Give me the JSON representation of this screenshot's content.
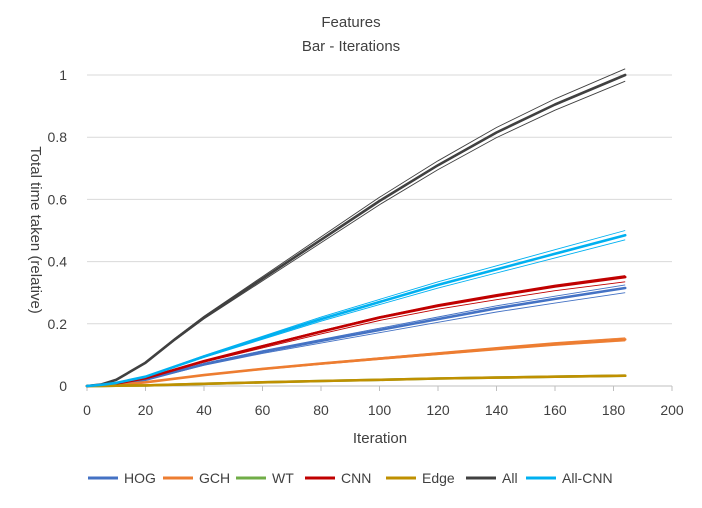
{
  "chart_data": {
    "type": "line",
    "title": "Features",
    "subtitle": "Bar - Iterations",
    "xlabel": "Iteration",
    "ylabel": "Total time taken (relative)",
    "xlim": [
      0,
      200
    ],
    "ylim": [
      0,
      1
    ],
    "x_ticks": [
      "0",
      "20",
      "40",
      "60",
      "80",
      "100",
      "120",
      "140",
      "160",
      "180",
      "200"
    ],
    "y_ticks": [
      "0",
      "0.2",
      "0.4",
      "0.6",
      "0.8",
      "1"
    ],
    "grid": "horizontal",
    "legend_position": "bottom",
    "series": [
      {
        "name": "HOG",
        "color": "#4472C4",
        "x": [
          0,
          5,
          10,
          20,
          40,
          60,
          80,
          100,
          120,
          140,
          160,
          184
        ],
        "values": [
          0,
          0.002,
          0.006,
          0.02,
          0.07,
          0.11,
          0.145,
          0.18,
          0.215,
          0.25,
          0.28,
          0.315
        ],
        "band": [
          0.3,
          0.325
        ]
      },
      {
        "name": "GCH",
        "color": "#ED7D31",
        "x": [
          0,
          5,
          10,
          20,
          40,
          60,
          80,
          100,
          120,
          140,
          160,
          184
        ],
        "values": [
          0,
          0.001,
          0.004,
          0.012,
          0.035,
          0.055,
          0.072,
          0.088,
          0.104,
          0.12,
          0.135,
          0.15
        ],
        "band": [
          0.145,
          0.155
        ]
      },
      {
        "name": "WT",
        "color": "#70AD47",
        "x": [
          0,
          5,
          10,
          20,
          40,
          60,
          80,
          100,
          120,
          140,
          160,
          184
        ],
        "values": [
          0,
          0,
          0.001,
          0.002,
          0.007,
          0.012,
          0.016,
          0.02,
          0.024,
          0.027,
          0.03,
          0.033
        ],
        "band": [
          0.031,
          0.035
        ]
      },
      {
        "name": "CNN",
        "color": "#C00000",
        "x": [
          0,
          5,
          10,
          20,
          40,
          60,
          80,
          100,
          120,
          140,
          160,
          184
        ],
        "values": [
          0,
          0.003,
          0.008,
          0.025,
          0.08,
          0.128,
          0.175,
          0.22,
          0.258,
          0.29,
          0.32,
          0.35
        ],
        "band": [
          0.335,
          0.355
        ]
      },
      {
        "name": "Edge",
        "color": "#BF9000",
        "x": [
          0,
          5,
          10,
          20,
          40,
          60,
          80,
          100,
          120,
          140,
          160,
          184
        ],
        "values": [
          0,
          0,
          0.001,
          0.002,
          0.007,
          0.012,
          0.016,
          0.02,
          0.024,
          0.027,
          0.03,
          0.033
        ],
        "band": [
          0.031,
          0.035
        ]
      },
      {
        "name": "All",
        "color": "#404040",
        "x": [
          0,
          5,
          10,
          20,
          30,
          40,
          60,
          80,
          100,
          120,
          140,
          160,
          184
        ],
        "values": [
          0,
          0.005,
          0.02,
          0.075,
          0.15,
          0.22,
          0.345,
          0.47,
          0.595,
          0.71,
          0.815,
          0.905,
          1.0
        ],
        "band": [
          0.98,
          1.02
        ]
      },
      {
        "name": "All-CNN",
        "color": "#00B0F0",
        "x": [
          0,
          5,
          10,
          20,
          40,
          60,
          80,
          100,
          120,
          140,
          160,
          184
        ],
        "values": [
          0,
          0.004,
          0.01,
          0.03,
          0.095,
          0.155,
          0.215,
          0.27,
          0.325,
          0.375,
          0.425,
          0.485
        ],
        "band": [
          0.47,
          0.5
        ]
      }
    ]
  }
}
